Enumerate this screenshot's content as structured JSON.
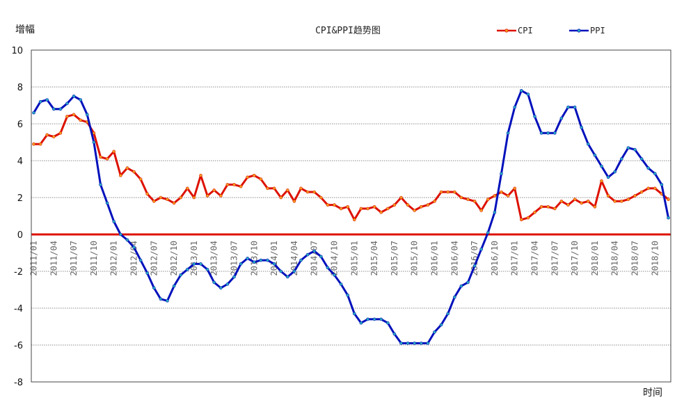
{
  "chart_data": {
    "type": "line",
    "title": "CPI&PPI趋势图",
    "ylabel": "增幅",
    "xlabel": "时间",
    "ylim": [
      -8,
      10
    ],
    "yticks": [
      -8,
      -6,
      -4,
      -2,
      0,
      2,
      4,
      6,
      8,
      10
    ],
    "x": [
      "2011/01",
      "2011/02",
      "2011/03",
      "2011/04",
      "2011/05",
      "2011/06",
      "2011/07",
      "2011/08",
      "2011/09",
      "2011/10",
      "2011/11",
      "2011/12",
      "2012/01",
      "2012/02",
      "2012/03",
      "2012/04",
      "2012/05",
      "2012/06",
      "2012/07",
      "2012/08",
      "2012/09",
      "2012/10",
      "2012/11",
      "2012/12",
      "2013/01",
      "2013/02",
      "2013/03",
      "2013/04",
      "2013/05",
      "2013/06",
      "2013/07",
      "2013/08",
      "2013/09",
      "2013/10",
      "2013/11",
      "2013/12",
      "2014/01",
      "2014/02",
      "2014/03",
      "2014/04",
      "2014/05",
      "2014/06",
      "2014/07",
      "2014/08",
      "2014/09",
      "2014/10",
      "2014/11",
      "2014/12",
      "2015/01",
      "2015/02",
      "2015/03",
      "2015/04",
      "2015/05",
      "2015/06",
      "2015/07",
      "2015/08",
      "2015/09",
      "2015/10",
      "2015/11",
      "2015/12",
      "2016/01",
      "2016/02",
      "2016/03",
      "2016/04",
      "2016/05",
      "2016/06",
      "2016/07",
      "2016/08",
      "2016/09",
      "2016/10",
      "2016/11",
      "2016/12",
      "2017/01",
      "2017/02",
      "2017/03",
      "2017/04",
      "2017/05",
      "2017/06",
      "2017/07",
      "2017/08",
      "2017/09",
      "2017/10",
      "2017/11",
      "2017/12",
      "2018/01",
      "2018/02",
      "2018/03",
      "2018/04",
      "2018/05",
      "2018/06",
      "2018/07",
      "2018/08",
      "2018/09",
      "2018/10",
      "2018/11",
      "2018/12"
    ],
    "xtick_labels": [
      "2011/01",
      "2011/04",
      "2011/07",
      "2011/10",
      "2012/01",
      "2012/04",
      "2012/07",
      "2012/10",
      "2013/01",
      "2013/04",
      "2013/07",
      "2013/10",
      "2014/01",
      "2014/04",
      "2014/07",
      "2014/10",
      "2015/01",
      "2015/04",
      "2015/07",
      "2015/10",
      "2016/01",
      "2016/04",
      "2016/07",
      "2016/10",
      "2017/01",
      "2017/04",
      "2017/07",
      "2017/10",
      "2018/01",
      "2018/04",
      "2018/07",
      "2018/10"
    ],
    "series": [
      {
        "name": "CPI",
        "color": "#dd1100",
        "values": [
          4.9,
          4.9,
          5.4,
          5.3,
          5.5,
          6.4,
          6.5,
          6.2,
          6.1,
          5.5,
          4.2,
          4.1,
          4.5,
          3.2,
          3.6,
          3.4,
          3.0,
          2.2,
          1.8,
          2.0,
          1.9,
          1.7,
          2.0,
          2.5,
          2.0,
          3.2,
          2.1,
          2.4,
          2.1,
          2.7,
          2.7,
          2.6,
          3.1,
          3.2,
          3.0,
          2.5,
          2.5,
          2.0,
          2.4,
          1.8,
          2.5,
          2.3,
          2.3,
          2.0,
          1.6,
          1.6,
          1.4,
          1.5,
          0.8,
          1.4,
          1.4,
          1.5,
          1.2,
          1.4,
          1.6,
          2.0,
          1.6,
          1.3,
          1.5,
          1.6,
          1.8,
          2.3,
          2.3,
          2.3,
          2.0,
          1.9,
          1.8,
          1.3,
          1.9,
          2.1,
          2.3,
          2.1,
          2.5,
          0.8,
          0.9,
          1.2,
          1.5,
          1.5,
          1.4,
          1.8,
          1.6,
          1.9,
          1.7,
          1.8,
          1.5,
          2.9,
          2.1,
          1.8,
          1.8,
          1.9,
          2.1,
          2.3,
          2.5,
          2.5,
          2.2,
          1.9
        ]
      },
      {
        "name": "PPI",
        "color": "#0011bb",
        "values": [
          6.6,
          7.2,
          7.3,
          6.8,
          6.8,
          7.1,
          7.5,
          7.3,
          6.5,
          5.0,
          2.7,
          1.7,
          0.7,
          0.0,
          -0.3,
          -0.7,
          -1.4,
          -2.1,
          -2.9,
          -3.5,
          -3.6,
          -2.8,
          -2.2,
          -1.9,
          -1.6,
          -1.6,
          -1.9,
          -2.6,
          -2.9,
          -2.7,
          -2.3,
          -1.6,
          -1.3,
          -1.5,
          -1.4,
          -1.4,
          -1.6,
          -2.0,
          -2.3,
          -2.0,
          -1.4,
          -1.1,
          -0.9,
          -1.2,
          -1.8,
          -2.2,
          -2.7,
          -3.3,
          -4.3,
          -4.8,
          -4.6,
          -4.6,
          -4.6,
          -4.8,
          -5.4,
          -5.9,
          -5.9,
          -5.9,
          -5.9,
          -5.9,
          -5.3,
          -4.9,
          -4.3,
          -3.4,
          -2.8,
          -2.6,
          -1.7,
          -0.8,
          0.1,
          1.2,
          3.3,
          5.5,
          6.9,
          7.8,
          7.6,
          6.4,
          5.5,
          5.5,
          5.5,
          6.3,
          6.9,
          6.9,
          5.8,
          4.9,
          4.3,
          3.7,
          3.1,
          3.4,
          4.1,
          4.7,
          4.6,
          4.1,
          3.6,
          3.3,
          2.7,
          0.9
        ]
      }
    ],
    "grid": true,
    "legend": "top-right"
  }
}
